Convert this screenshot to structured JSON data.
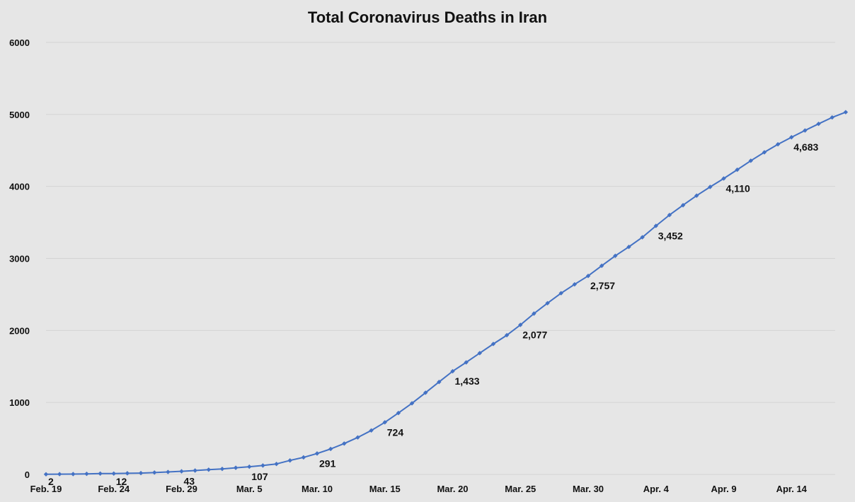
{
  "chart_data": {
    "type": "line",
    "title": "Total Coronavirus Deaths in Iran",
    "xlabel": "",
    "ylabel": "",
    "ylim": [
      0,
      6000
    ],
    "yticks": [
      "0",
      "1000",
      "2000",
      "3000",
      "4000",
      "5000",
      "6000"
    ],
    "xtick_labels": [
      "Feb. 19",
      "Feb. 24",
      "Feb. 29",
      "Mar. 5",
      "Mar. 10",
      "Mar. 15",
      "Mar. 20",
      "Mar. 25",
      "Mar. 30",
      "Apr. 4",
      "Apr. 9",
      "Apr. 14"
    ],
    "grid": true,
    "legend": "none",
    "line_color": "#4472c4",
    "x": [
      "Feb. 19",
      "Feb. 20",
      "Feb. 21",
      "Feb. 22",
      "Feb. 23",
      "Feb. 24",
      "Feb. 25",
      "Feb. 26",
      "Feb. 27",
      "Feb. 28",
      "Feb. 29",
      "Mar. 1",
      "Mar. 2",
      "Mar. 3",
      "Mar. 4",
      "Mar. 5",
      "Mar. 6",
      "Mar. 7",
      "Mar. 8",
      "Mar. 9",
      "Mar. 10",
      "Mar. 11",
      "Mar. 12",
      "Mar. 13",
      "Mar. 14",
      "Mar. 15",
      "Mar. 16",
      "Mar. 17",
      "Mar. 18",
      "Mar. 19",
      "Mar. 20",
      "Mar. 21",
      "Mar. 22",
      "Mar. 23",
      "Mar. 24",
      "Mar. 25",
      "Mar. 26",
      "Mar. 27",
      "Mar. 28",
      "Mar. 29",
      "Mar. 30",
      "Mar. 31",
      "Apr. 1",
      "Apr. 2",
      "Apr. 3",
      "Apr. 4",
      "Apr. 5",
      "Apr. 6",
      "Apr. 7",
      "Apr. 8",
      "Apr. 9",
      "Apr. 10",
      "Apr. 11",
      "Apr. 12",
      "Apr. 13",
      "Apr. 14",
      "Apr. 15",
      "Apr. 16",
      "Apr. 17",
      "Apr. 18"
    ],
    "series": [
      {
        "values": [
          2,
          4,
          5,
          8,
          12,
          12,
          16,
          19,
          26,
          34,
          43,
          54,
          66,
          77,
          92,
          107,
          124,
          145,
          194,
          237,
          291,
          354,
          429,
          514,
          611,
          724,
          853,
          988,
          1135,
          1284,
          1433,
          1556,
          1685,
          1812,
          1934,
          2077,
          2234,
          2378,
          2517,
          2640,
          2757,
          2898,
          3036,
          3160,
          3294,
          3452,
          3603,
          3739,
          3872,
          3993,
          4110,
          4232,
          4357,
          4474,
          4585,
          4683,
          4777,
          4869,
          4958,
          5031
        ]
      }
    ],
    "annotations": [
      {
        "x": "Feb. 19",
        "value": 2,
        "label": "2"
      },
      {
        "x": "Feb. 24",
        "value": 12,
        "label": "12"
      },
      {
        "x": "Feb. 29",
        "value": 43,
        "label": "43"
      },
      {
        "x": "Mar. 5",
        "value": 107,
        "label": "107"
      },
      {
        "x": "Mar. 10",
        "value": 291,
        "label": "291"
      },
      {
        "x": "Mar. 15",
        "value": 724,
        "label": "724"
      },
      {
        "x": "Mar. 20",
        "value": 1433,
        "label": "1,433"
      },
      {
        "x": "Mar. 25",
        "value": 2077,
        "label": "2,077"
      },
      {
        "x": "Mar. 30",
        "value": 2757,
        "label": "2,757"
      },
      {
        "x": "Apr. 4",
        "value": 3452,
        "label": "3,452"
      },
      {
        "x": "Apr. 9",
        "value": 4110,
        "label": "4,110"
      },
      {
        "x": "Apr. 14",
        "value": 4683,
        "label": "4,683"
      }
    ]
  }
}
